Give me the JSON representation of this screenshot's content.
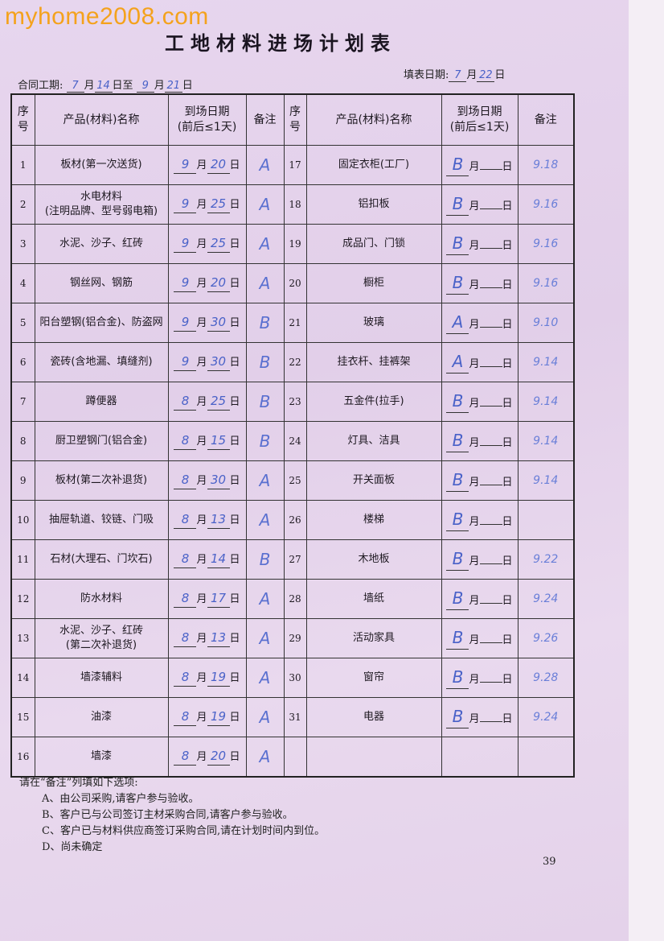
{
  "watermark": "myhome2008.com",
  "title": "工地材料进场计划表",
  "contract": {
    "label": "合同工期:",
    "start_month": "7",
    "month_char": "月",
    "start_day": "14",
    "to": "日至",
    "end_month": "9",
    "end_day": "21",
    "day_char": "日"
  },
  "fill_date": {
    "label": "填表日期:",
    "month": "7",
    "month_char": "月",
    "day": "22",
    "day_char": "日"
  },
  "headers": {
    "seq": "序号",
    "name": "产品(材料)名称",
    "date": "到场日期",
    "date_sub": "(前后≤1天)",
    "note": "备注"
  },
  "units": {
    "month": "月",
    "day": "日"
  },
  "left_rows": [
    {
      "no": "1",
      "name": "板材(第一次送货)",
      "month": "9",
      "day": "20",
      "note": "A"
    },
    {
      "no": "2",
      "name": "水电材料",
      "name2": "(注明品牌、型号弱电箱)",
      "month": "9",
      "day": "25",
      "note": "A"
    },
    {
      "no": "3",
      "name": "水泥、沙子、红砖",
      "month": "9",
      "day": "25",
      "note": "A"
    },
    {
      "no": "4",
      "name": "钢丝网、钢筋",
      "month": "9",
      "day": "20",
      "note": "A"
    },
    {
      "no": "5",
      "name": "阳台塑钢(铝合金)、防盗网",
      "month": "9",
      "day": "30",
      "note": "B"
    },
    {
      "no": "6",
      "name": "瓷砖(含地漏、填缝剂)",
      "month": "9",
      "day": "30",
      "note": "B"
    },
    {
      "no": "7",
      "name": "蹲便器",
      "month": "8",
      "day": "25",
      "note": "B"
    },
    {
      "no": "8",
      "name": "厨卫塑钢门(铝合金)",
      "month": "8",
      "day": "15",
      "note": "B"
    },
    {
      "no": "9",
      "name": "板材(第二次补退货)",
      "month": "8",
      "day": "30",
      "note": "A"
    },
    {
      "no": "10",
      "name": "抽屉轨道、铰链、门吸",
      "month": "8",
      "day": "13",
      "note": "A"
    },
    {
      "no": "11",
      "name": "石材(大理石、门坎石)",
      "month": "8",
      "day": "14",
      "note": "B"
    },
    {
      "no": "12",
      "name": "防水材料",
      "month": "8",
      "day": "17",
      "note": "A"
    },
    {
      "no": "13",
      "name": "水泥、沙子、红砖",
      "name2": "(第二次补退货)",
      "month": "8",
      "day": "13",
      "note": "A"
    },
    {
      "no": "14",
      "name": "墙漆辅料",
      "month": "8",
      "day": "19",
      "note": "A"
    },
    {
      "no": "15",
      "name": "油漆",
      "month": "8",
      "day": "19",
      "note": "A"
    },
    {
      "no": "16",
      "name": "墙漆",
      "month": "8",
      "day": "20",
      "note": "A"
    }
  ],
  "right_rows": [
    {
      "no": "17",
      "name": "固定衣柜(工厂)",
      "mark": "B",
      "remark": "9.18"
    },
    {
      "no": "18",
      "name": "铝扣板",
      "mark": "B",
      "remark": "9.16"
    },
    {
      "no": "19",
      "name": "成品门、门锁",
      "mark": "B",
      "remark": "9.16"
    },
    {
      "no": "20",
      "name": "橱柜",
      "mark": "B",
      "remark": "9.16"
    },
    {
      "no": "21",
      "name": "玻璃",
      "mark": "A",
      "remark": "9.10"
    },
    {
      "no": "22",
      "name": "挂衣杆、挂裤架",
      "mark": "A",
      "remark": "9.14"
    },
    {
      "no": "23",
      "name": "五金件(拉手)",
      "mark": "B",
      "remark": "9.14"
    },
    {
      "no": "24",
      "name": "灯具、洁具",
      "mark": "B",
      "remark": "9.14"
    },
    {
      "no": "25",
      "name": "开关面板",
      "mark": "B",
      "remark": "9.14"
    },
    {
      "no": "26",
      "name": "楼梯",
      "mark": "B",
      "remark": ""
    },
    {
      "no": "27",
      "name": "木地板",
      "mark": "B",
      "remark": "9.22"
    },
    {
      "no": "28",
      "name": "墙纸",
      "mark": "B",
      "remark": "9.24"
    },
    {
      "no": "29",
      "name": "活动家具",
      "mark": "B",
      "remark": "9.26"
    },
    {
      "no": "30",
      "name": "窗帘",
      "mark": "B",
      "remark": "9.28"
    },
    {
      "no": "31",
      "name": "电器",
      "mark": "B",
      "remark": "9.24"
    }
  ],
  "footer": {
    "intro": "请在“备注”列填如下选项:",
    "options": [
      "A、由公司采购,请客户参与验收。",
      "B、客户已与公司签订主材采购合同,请客户参与验收。",
      "C、客户已与材料供应商签订采购合同,请在计划时间内到位。",
      "D、尚未确定"
    ]
  },
  "page_number": "39",
  "colors": {
    "paper": "#e4d2ea",
    "handwriting": "#4a62c8",
    "watermark": "#f4a21c"
  }
}
